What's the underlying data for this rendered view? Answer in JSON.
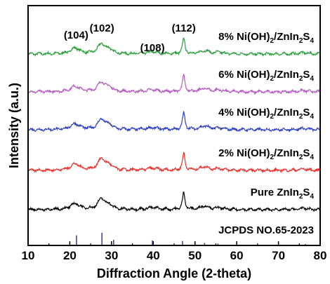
{
  "chart_data": {
    "type": "line",
    "xlabel": "Diffraction Angle (2-theta)",
    "ylabel": "Intensity (a.u.)",
    "xlim": [
      10,
      80
    ],
    "x_ticks": [
      "10",
      "20",
      "30",
      "40",
      "50",
      "60",
      "70",
      "80"
    ],
    "y_ticks_shown": false,
    "grid": false,
    "legend": "inline-labels",
    "peak_labels": [
      {
        "text": "(104)",
        "x": 21.5
      },
      {
        "text": "(102)",
        "x": 27.7
      },
      {
        "text": "(108)",
        "x": 39.8
      },
      {
        "text": "(112)",
        "x": 47.3
      }
    ],
    "series": [
      {
        "prefix": "8% Ni(OH)",
        "sub1": "2",
        "mid": "/ZnIn",
        "sub2": "2",
        "mid2": "S",
        "sub3": "4",
        "color": "#2e9e3e",
        "peaks": [
          [
            21.3,
            0.35,
            1.3
          ],
          [
            27.6,
            0.6,
            1.0
          ],
          [
            29.5,
            0.25,
            0.8
          ],
          [
            39.8,
            0.12,
            1.6
          ],
          [
            47.3,
            0.92,
            0.35
          ],
          [
            52.3,
            0.2,
            1.2
          ],
          [
            55.8,
            0.1,
            1.0
          ],
          [
            76.0,
            0.08,
            1.2
          ]
        ]
      },
      {
        "prefix": "6% Ni(OH)",
        "sub1": "2",
        "mid": "/ZnIn",
        "sub2": "2",
        "mid2": "S",
        "sub3": "4",
        "color": "#b45cc1",
        "peaks": [
          [
            21.3,
            0.33,
            1.3
          ],
          [
            27.6,
            0.58,
            1.0
          ],
          [
            29.5,
            0.25,
            0.8
          ],
          [
            39.8,
            0.12,
            1.6
          ],
          [
            47.3,
            0.95,
            0.35
          ],
          [
            52.3,
            0.2,
            1.2
          ],
          [
            55.8,
            0.1,
            1.0
          ],
          [
            76.0,
            0.08,
            1.2
          ]
        ]
      },
      {
        "prefix": "4% Ni(OH)",
        "sub1": "2",
        "mid": "/ZnIn",
        "sub2": "2",
        "mid2": "S",
        "sub3": "4",
        "color": "#2b3fbf",
        "peaks": [
          [
            21.3,
            0.35,
            1.3
          ],
          [
            27.6,
            0.62,
            1.0
          ],
          [
            29.5,
            0.25,
            0.8
          ],
          [
            39.8,
            0.12,
            1.6
          ],
          [
            47.3,
            1.0,
            0.35
          ],
          [
            52.3,
            0.22,
            1.2
          ],
          [
            55.8,
            0.1,
            1.0
          ],
          [
            76.0,
            0.08,
            1.2
          ]
        ]
      },
      {
        "prefix": "2% Ni(OH)",
        "sub1": "2",
        "mid": "/ZnIn",
        "sub2": "2",
        "mid2": "S",
        "sub3": "4",
        "color": "#e8322d",
        "peaks": [
          [
            21.3,
            0.38,
            1.3
          ],
          [
            27.6,
            0.7,
            1.0
          ],
          [
            29.5,
            0.28,
            0.8
          ],
          [
            39.8,
            0.12,
            1.6
          ],
          [
            47.3,
            1.0,
            0.35
          ],
          [
            52.3,
            0.22,
            1.2
          ],
          [
            55.8,
            0.1,
            1.0
          ],
          [
            76.0,
            0.08,
            1.2
          ]
        ]
      },
      {
        "prefix": "Pure ZnIn",
        "sub1": "2",
        "mid": "S",
        "sub2": "4",
        "mid2": "",
        "sub3": "",
        "color": "#000000",
        "peaks": [
          [
            21.3,
            0.35,
            1.3
          ],
          [
            27.6,
            0.65,
            1.0
          ],
          [
            29.5,
            0.25,
            0.8
          ],
          [
            39.8,
            0.12,
            1.6
          ],
          [
            47.3,
            1.0,
            0.35
          ],
          [
            52.3,
            0.22,
            1.2
          ],
          [
            55.8,
            0.1,
            1.0
          ],
          [
            76.0,
            0.08,
            1.2
          ]
        ]
      }
    ],
    "reference": {
      "label": "JCPDS NO.65-2023",
      "color": "#3a3a9a",
      "lines": [
        [
          21.6,
          0.8
        ],
        [
          27.7,
          1.0
        ],
        [
          30.5,
          0.45
        ],
        [
          39.8,
          0.4
        ],
        [
          47.0,
          0.35
        ],
        [
          52.3,
          0.2
        ],
        [
          55.5,
          0.15
        ],
        [
          76.5,
          0.12
        ]
      ]
    }
  }
}
